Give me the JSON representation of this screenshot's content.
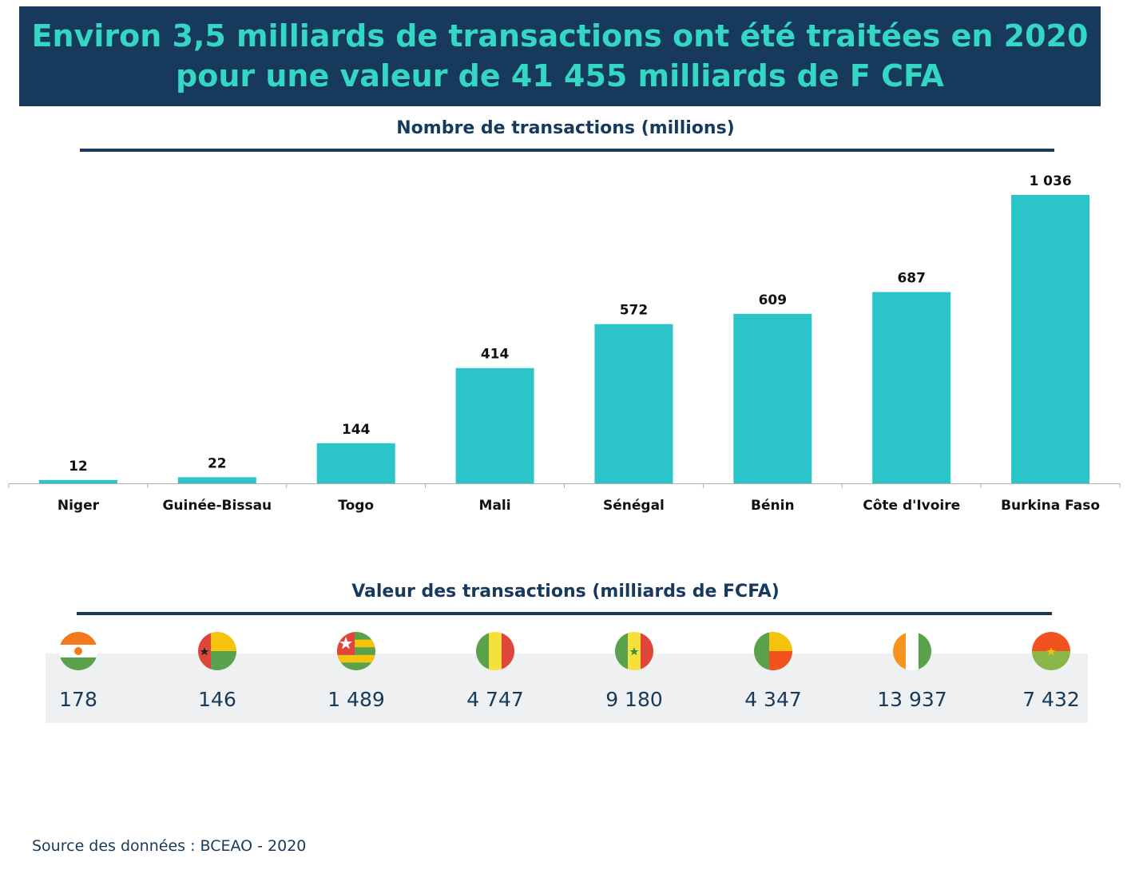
{
  "banner": {
    "line1": "Environ 3,5 milliards de transactions ont été traitées en 2020",
    "line2": "pour une valeur de 41 455 milliards de F CFA"
  },
  "colors": {
    "navy": "#173a5c",
    "teal": "#2ac4c9",
    "headline": "#34d6c4",
    "band": "#eef0f2"
  },
  "chart_data": {
    "type": "bar",
    "title": "Nombre de transactions (millions)",
    "categories": [
      "Niger",
      "Guinée-Bissau",
      "Togo",
      "Mali",
      "Sénégal",
      "Bénin",
      "Côte d'Ivoire",
      "Burkina Faso"
    ],
    "values": [
      12,
      22,
      144,
      414,
      572,
      609,
      687,
      1036
    ],
    "value_labels": [
      "12",
      "22",
      "144",
      "414",
      "572",
      "609",
      "687",
      "1 036"
    ],
    "xlabel": "",
    "ylabel": "",
    "ylim": [
      0,
      1036
    ]
  },
  "values_section": {
    "title": "Valeur des transactions  (milliards de FCFA)",
    "items": [
      {
        "country": "Niger",
        "flag": "niger-flag-icon",
        "value": "178"
      },
      {
        "country": "Guinée-Bissau",
        "flag": "guinea-bissau-flag-icon",
        "value": "146"
      },
      {
        "country": "Togo",
        "flag": "togo-flag-icon",
        "value": "1 489"
      },
      {
        "country": "Mali",
        "flag": "mali-flag-icon",
        "value": "4 747"
      },
      {
        "country": "Sénégal",
        "flag": "senegal-flag-icon",
        "value": "9 180"
      },
      {
        "country": "Bénin",
        "flag": "benin-flag-icon",
        "value": "4 347"
      },
      {
        "country": "Côte d'Ivoire",
        "flag": "cote-divoire-flag-icon",
        "value": "13 937"
      },
      {
        "country": "Burkina Faso",
        "flag": "burkina-faso-flag-icon",
        "value": "7 432"
      }
    ]
  },
  "source": "Source des données : BCEAO - 2020"
}
